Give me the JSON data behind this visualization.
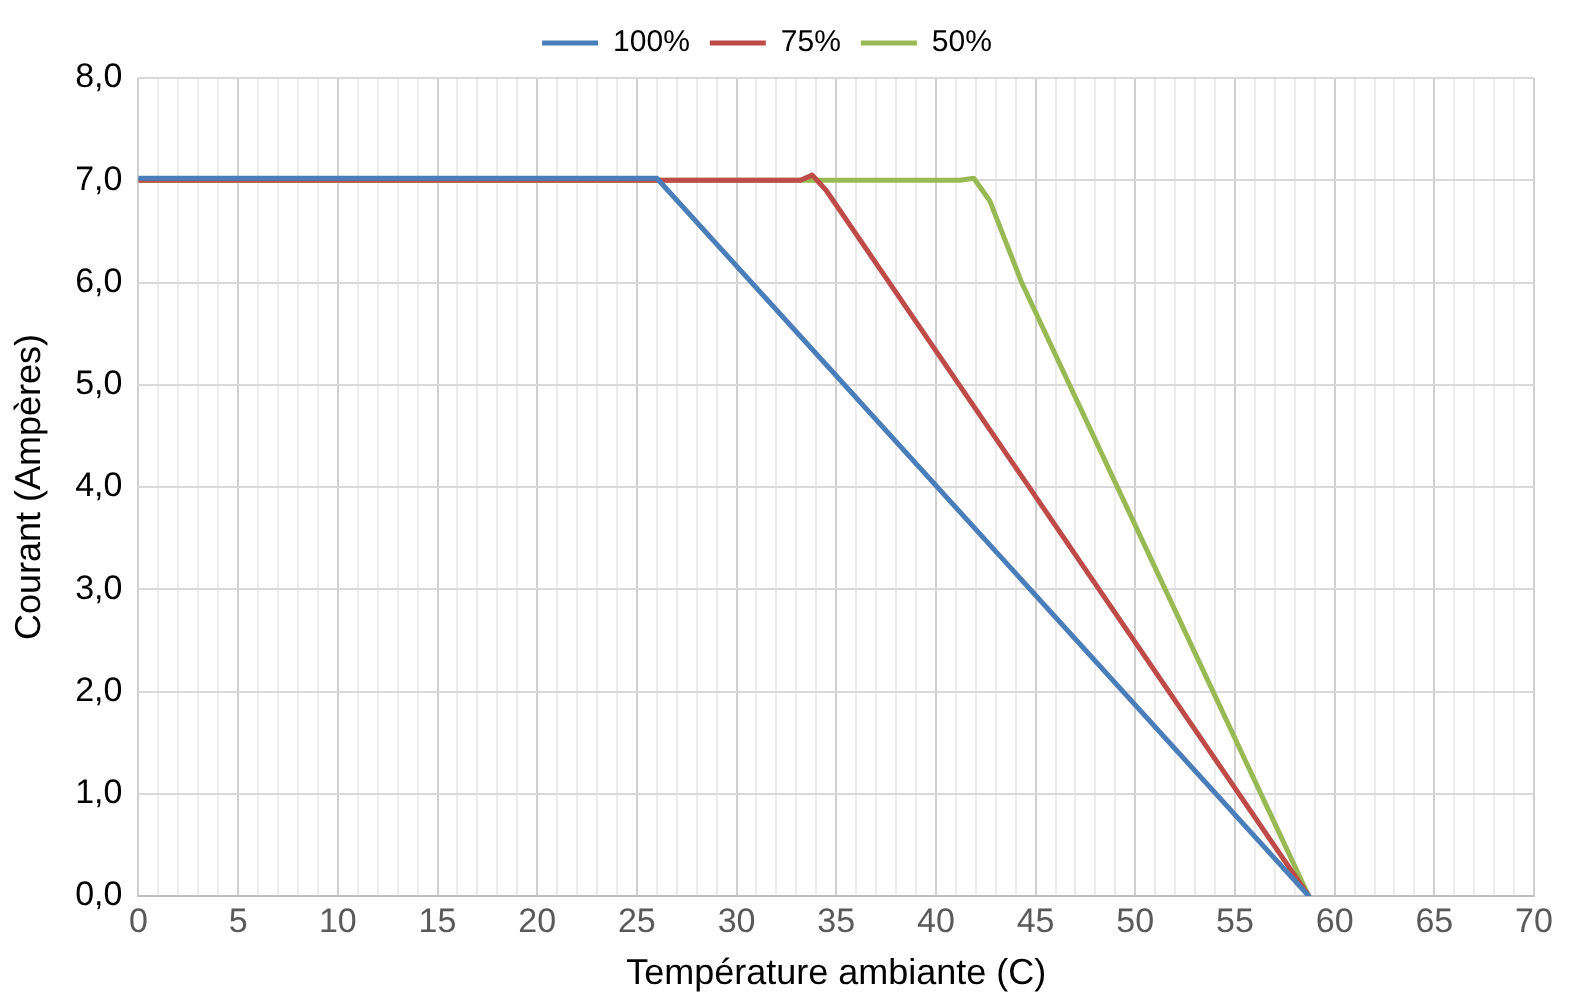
{
  "chart_data": {
    "type": "line",
    "xlabel": "Température ambiante (C)",
    "ylabel": "Courant (Ampères)",
    "xlim": [
      0,
      70
    ],
    "ylim": [
      0,
      8
    ],
    "xticks": [
      0,
      {
        "value": 1,
        "label": null
      },
      {
        "value": 2,
        "label": null
      },
      {
        "value": 3,
        "label": null
      },
      {
        "value": 4,
        "label": null
      },
      5,
      {
        "value": 6,
        "label": null
      },
      {
        "value": 7,
        "label": null
      },
      {
        "value": 8,
        "label": null
      },
      {
        "value": 9,
        "label": null
      },
      10,
      {
        "value": 11,
        "label": null
      },
      {
        "value": 12,
        "label": null
      },
      {
        "value": 13,
        "label": null
      },
      {
        "value": 14,
        "label": null
      },
      15,
      {
        "value": 16,
        "label": null
      },
      {
        "value": 17,
        "label": null
      },
      {
        "value": 18,
        "label": null
      },
      {
        "value": 19,
        "label": null
      },
      20,
      {
        "value": 21,
        "label": null
      },
      {
        "value": 22,
        "label": null
      },
      {
        "value": 23,
        "label": null
      },
      {
        "value": 24,
        "label": null
      },
      25,
      {
        "value": 26,
        "label": null
      },
      {
        "value": 27,
        "label": null
      },
      {
        "value": 28,
        "label": null
      },
      {
        "value": 29,
        "label": null
      },
      30,
      {
        "value": 31,
        "label": null
      },
      {
        "value": 32,
        "label": null
      },
      {
        "value": 33,
        "label": null
      },
      {
        "value": 34,
        "label": null
      },
      35,
      {
        "value": 36,
        "label": null
      },
      {
        "value": 37,
        "label": null
      },
      {
        "value": 38,
        "label": null
      },
      {
        "value": 39,
        "label": null
      },
      40,
      {
        "value": 41,
        "label": null
      },
      {
        "value": 42,
        "label": null
      },
      {
        "value": 43,
        "label": null
      },
      {
        "value": 44,
        "label": null
      },
      45,
      {
        "value": 46,
        "label": null
      },
      {
        "value": 47,
        "label": null
      },
      {
        "value": 48,
        "label": null
      },
      {
        "value": 49,
        "label": null
      },
      50,
      {
        "value": 51,
        "label": null
      },
      {
        "value": 52,
        "label": null
      },
      {
        "value": 53,
        "label": null
      },
      {
        "value": 54,
        "label": null
      },
      55,
      {
        "value": 56,
        "label": null
      },
      {
        "value": 57,
        "label": null
      },
      {
        "value": 58,
        "label": null
      },
      {
        "value": 59,
        "label": null
      },
      60,
      {
        "value": 61,
        "label": null
      },
      {
        "value": 62,
        "label": null
      },
      {
        "value": 63,
        "label": null
      },
      {
        "value": 64,
        "label": null
      },
      65,
      {
        "value": 66,
        "label": null
      },
      {
        "value": 67,
        "label": null
      },
      {
        "value": 68,
        "label": null
      },
      {
        "value": 69,
        "label": null
      },
      70
    ],
    "yticks": [
      {
        "value": 0,
        "label": "0,0"
      },
      {
        "value": 1,
        "label": "1,0"
      },
      {
        "value": 2,
        "label": "2,0"
      },
      {
        "value": 3,
        "label": "3,0"
      },
      {
        "value": 4,
        "label": "4,0"
      },
      {
        "value": 5,
        "label": "5,0"
      },
      {
        "value": 6,
        "label": "6,0"
      },
      {
        "value": 7,
        "label": "7,0"
      },
      {
        "value": 8,
        "label": "8,0"
      }
    ],
    "grid": true,
    "legend": "top",
    "marker": "none",
    "line_style": "solid",
    "series": [
      {
        "name": "100%",
        "color": "#4a7ebb",
        "x": [
          0,
          26,
          58.7
        ],
        "values": [
          7.02,
          7.02,
          0
        ]
      },
      {
        "name": "75%",
        "color": "#be4b48",
        "x": [
          0,
          33.2,
          33.8,
          34.5,
          58.7
        ],
        "values": [
          7.0,
          7.0,
          7.05,
          6.9,
          0
        ]
      },
      {
        "name": "50%",
        "color": "#98b954",
        "x": [
          0,
          41.2,
          41.9,
          42.7,
          43.5,
          44.3,
          58.7
        ],
        "values": [
          7.0,
          7.0,
          7.02,
          6.8,
          6.4,
          6.0,
          0
        ]
      }
    ]
  }
}
